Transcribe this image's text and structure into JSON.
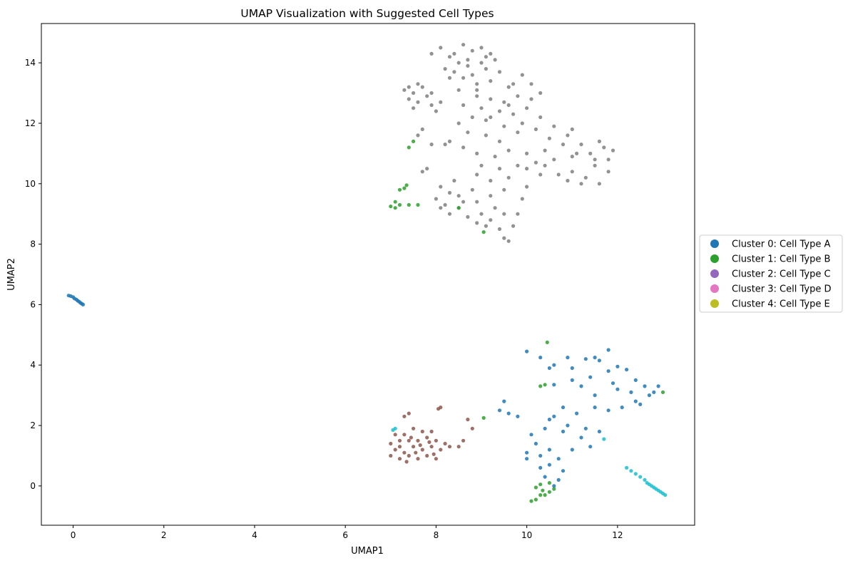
{
  "chart_data": {
    "type": "scatter",
    "title": "UMAP Visualization with Suggested Cell Types",
    "xlabel": "UMAP1",
    "ylabel": "UMAP2",
    "xlim": [
      -0.7,
      13.7
    ],
    "ylim": [
      -1.3,
      15.3
    ],
    "xticks": [
      0,
      2,
      4,
      6,
      8,
      10,
      12
    ],
    "yticks": [
      0,
      2,
      4,
      6,
      8,
      10,
      12,
      14
    ],
    "grid": false,
    "legend_position": "right",
    "legend": [
      {
        "label": "Cluster 0: Cell Type A",
        "color": "#1f77b4"
      },
      {
        "label": "Cluster 1: Cell Type B",
        "color": "#2ca02c"
      },
      {
        "label": "Cluster 2: Cell Type C",
        "color": "#9467bd"
      },
      {
        "label": "Cluster 3: Cell Type D",
        "color": "#e377c2"
      },
      {
        "label": "Cluster 4: Cell Type E",
        "color": "#bcbd22"
      }
    ],
    "series": [
      {
        "color": "#7f7f7f",
        "points": [
          [
            7.9,
            14.3
          ],
          [
            8.1,
            14.5
          ],
          [
            8.3,
            14.2
          ],
          [
            8.6,
            14.6
          ],
          [
            8.8,
            14.4
          ],
          [
            9.0,
            14.5
          ],
          [
            9.2,
            14.3
          ],
          [
            8.5,
            14.0
          ],
          [
            8.7,
            13.9
          ],
          [
            9.0,
            14.0
          ],
          [
            9.3,
            14.1
          ],
          [
            8.4,
            13.7
          ],
          [
            8.8,
            13.6
          ],
          [
            9.1,
            13.8
          ],
          [
            9.4,
            13.7
          ],
          [
            8.2,
            13.8
          ],
          [
            8.6,
            13.5
          ],
          [
            8.9,
            13.3
          ],
          [
            9.2,
            13.4
          ],
          [
            9.6,
            13.2
          ],
          [
            9.9,
            13.6
          ],
          [
            10.1,
            13.3
          ],
          [
            10.3,
            13.0
          ],
          [
            9.8,
            12.9
          ],
          [
            9.5,
            12.7
          ],
          [
            9.2,
            12.8
          ],
          [
            8.9,
            12.9
          ],
          [
            8.6,
            12.6
          ],
          [
            9.0,
            12.5
          ],
          [
            9.4,
            12.4
          ],
          [
            9.7,
            12.3
          ],
          [
            10.0,
            12.5
          ],
          [
            10.3,
            12.2
          ],
          [
            9.9,
            12.0
          ],
          [
            9.5,
            11.9
          ],
          [
            9.1,
            12.1
          ],
          [
            8.8,
            12.2
          ],
          [
            8.5,
            12.0
          ],
          [
            8.7,
            11.7
          ],
          [
            9.1,
            11.6
          ],
          [
            9.4,
            11.4
          ],
          [
            9.8,
            11.7
          ],
          [
            10.2,
            11.8
          ],
          [
            10.5,
            11.5
          ],
          [
            10.8,
            11.3
          ],
          [
            10.4,
            11.1
          ],
          [
            10.0,
            11.0
          ],
          [
            9.6,
            11.1
          ],
          [
            9.3,
            10.9
          ],
          [
            8.9,
            11.0
          ],
          [
            8.6,
            11.2
          ],
          [
            8.3,
            11.4
          ],
          [
            9.0,
            10.6
          ],
          [
            9.4,
            10.5
          ],
          [
            9.8,
            10.6
          ],
          [
            10.2,
            10.7
          ],
          [
            10.6,
            10.8
          ],
          [
            11.0,
            10.9
          ],
          [
            11.4,
            11.0
          ],
          [
            11.7,
            11.2
          ],
          [
            11.9,
            11.1
          ],
          [
            11.6,
            11.4
          ],
          [
            11.2,
            11.3
          ],
          [
            10.9,
            11.6
          ],
          [
            11.1,
            11.0
          ],
          [
            11.5,
            10.6
          ],
          [
            11.8,
            10.4
          ],
          [
            11.3,
            10.2
          ],
          [
            11.0,
            10.4
          ],
          [
            10.7,
            10.3
          ],
          [
            10.3,
            10.3
          ],
          [
            11.2,
            10.0
          ],
          [
            11.6,
            10.0
          ],
          [
            10.9,
            10.1
          ],
          [
            11.5,
            10.8
          ],
          [
            11.8,
            10.8
          ],
          [
            7.3,
            13.1
          ],
          [
            7.5,
            13.0
          ],
          [
            7.7,
            13.2
          ],
          [
            7.4,
            12.8
          ],
          [
            7.6,
            12.7
          ],
          [
            7.8,
            12.9
          ],
          [
            7.5,
            12.5
          ],
          [
            7.9,
            12.6
          ],
          [
            8.1,
            12.7
          ],
          [
            7.7,
            11.8
          ],
          [
            7.6,
            11.6
          ],
          [
            7.9,
            11.3
          ],
          [
            8.2,
            11.3
          ],
          [
            7.8,
            10.5
          ],
          [
            7.7,
            10.4
          ],
          [
            8.1,
            9.9
          ],
          [
            8.3,
            9.7
          ],
          [
            8.0,
            9.5
          ],
          [
            8.5,
            9.6
          ],
          [
            8.8,
            9.8
          ],
          [
            8.6,
            9.4
          ],
          [
            8.2,
            9.3
          ],
          [
            8.5,
            9.2
          ],
          [
            8.9,
            9.4
          ],
          [
            9.2,
            9.6
          ],
          [
            9.5,
            9.8
          ],
          [
            9.3,
            9.2
          ],
          [
            9.0,
            9.0
          ],
          [
            8.7,
            8.9
          ],
          [
            9.2,
            8.8
          ],
          [
            9.5,
            9.0
          ],
          [
            9.7,
            8.6
          ],
          [
            9.4,
            8.5
          ],
          [
            9.1,
            8.6
          ],
          [
            8.9,
            8.7
          ],
          [
            9.5,
            8.2
          ],
          [
            9.6,
            8.1
          ],
          [
            9.8,
            9.0
          ],
          [
            9.9,
            9.5
          ],
          [
            10.0,
            9.9
          ],
          [
            9.6,
            10.2
          ],
          [
            9.2,
            10.1
          ],
          [
            8.9,
            10.3
          ],
          [
            8.4,
            10.1
          ],
          [
            8.3,
            9.0
          ],
          [
            8.1,
            9.2
          ],
          [
            10.0,
            10.5
          ],
          [
            10.4,
            10.6
          ],
          [
            11.0,
            11.8
          ],
          [
            10.6,
            11.9
          ],
          [
            10.1,
            12.8
          ],
          [
            9.7,
            13.3
          ],
          [
            8.4,
            14.3
          ],
          [
            8.7,
            14.1
          ],
          [
            9.1,
            14.2
          ],
          [
            8.9,
            13.1
          ],
          [
            8.5,
            13.1
          ],
          [
            8.3,
            13.5
          ],
          [
            7.6,
            13.3
          ],
          [
            7.4,
            13.2
          ],
          [
            7.9,
            13.0
          ],
          [
            8.0,
            12.4
          ],
          [
            9.2,
            12.2
          ],
          [
            9.6,
            12.6
          ]
        ]
      },
      {
        "color": "#1f77b4",
        "points": [
          [
            -0.1,
            6.3
          ],
          [
            -0.05,
            6.28
          ],
          [
            0.0,
            6.25
          ],
          [
            0.03,
            6.2
          ],
          [
            0.07,
            6.17
          ],
          [
            0.1,
            6.13
          ],
          [
            0.13,
            6.1
          ],
          [
            0.16,
            6.06
          ],
          [
            0.19,
            6.03
          ],
          [
            0.22,
            6.0
          ],
          [
            10.0,
            4.45
          ],
          [
            10.3,
            4.25
          ],
          [
            10.6,
            4.0
          ],
          [
            10.9,
            4.25
          ],
          [
            11.3,
            4.2
          ],
          [
            11.5,
            4.25
          ],
          [
            11.8,
            4.5
          ],
          [
            11.6,
            4.15
          ],
          [
            12.0,
            3.95
          ],
          [
            12.2,
            3.85
          ],
          [
            11.8,
            3.8
          ],
          [
            11.4,
            3.6
          ],
          [
            11.0,
            3.5
          ],
          [
            10.6,
            3.35
          ],
          [
            11.2,
            3.3
          ],
          [
            11.5,
            3.0
          ],
          [
            12.0,
            3.2
          ],
          [
            12.3,
            3.1
          ],
          [
            12.6,
            3.3
          ],
          [
            12.9,
            3.3
          ],
          [
            12.7,
            3.0
          ],
          [
            12.4,
            2.8
          ],
          [
            12.1,
            2.6
          ],
          [
            11.8,
            2.5
          ],
          [
            11.5,
            2.6
          ],
          [
            11.1,
            2.4
          ],
          [
            10.8,
            2.6
          ],
          [
            10.6,
            2.3
          ],
          [
            10.9,
            2.0
          ],
          [
            11.3,
            1.9
          ],
          [
            11.6,
            1.8
          ],
          [
            11.2,
            1.6
          ],
          [
            10.8,
            1.8
          ],
          [
            10.4,
            1.9
          ],
          [
            10.1,
            1.7
          ],
          [
            9.4,
            2.5
          ],
          [
            9.6,
            2.4
          ],
          [
            9.8,
            2.3
          ],
          [
            9.5,
            2.8
          ],
          [
            10.5,
            2.2
          ],
          [
            10.2,
            1.4
          ],
          [
            10.0,
            1.1
          ],
          [
            10.3,
            1.0
          ],
          [
            10.5,
            1.2
          ],
          [
            10.7,
            0.9
          ],
          [
            10.5,
            0.7
          ],
          [
            10.8,
            0.5
          ],
          [
            10.7,
            0.2
          ],
          [
            10.6,
            0.0
          ],
          [
            10.4,
            0.3
          ],
          [
            10.0,
            0.9
          ],
          [
            10.3,
            0.6
          ],
          [
            11.0,
            1.2
          ],
          [
            11.4,
            1.3
          ],
          [
            12.5,
            2.7
          ],
          [
            12.8,
            3.1
          ],
          [
            12.4,
            3.5
          ],
          [
            11.9,
            3.4
          ],
          [
            11.0,
            3.9
          ],
          [
            10.5,
            3.9
          ]
        ]
      },
      {
        "color": "#2ca02c",
        "points": [
          [
            7.5,
            11.4
          ],
          [
            7.4,
            11.2
          ],
          [
            7.35,
            9.95
          ],
          [
            7.3,
            9.85
          ],
          [
            7.2,
            9.8
          ],
          [
            7.1,
            9.4
          ],
          [
            7.2,
            9.3
          ],
          [
            7.0,
            9.25
          ],
          [
            7.1,
            9.2
          ],
          [
            7.4,
            9.3
          ],
          [
            7.6,
            9.3
          ],
          [
            8.5,
            9.2
          ],
          [
            9.05,
            8.4
          ],
          [
            10.45,
            4.75
          ],
          [
            10.4,
            3.35
          ],
          [
            10.3,
            3.3
          ],
          [
            13.0,
            3.1
          ],
          [
            9.05,
            2.25
          ],
          [
            10.6,
            -0.1
          ],
          [
            10.5,
            -0.2
          ],
          [
            10.4,
            -0.3
          ],
          [
            10.3,
            -0.3
          ],
          [
            10.2,
            -0.45
          ],
          [
            10.1,
            -0.5
          ],
          [
            10.3,
            0.05
          ],
          [
            10.2,
            -0.05
          ],
          [
            10.5,
            0.1
          ],
          [
            10.35,
            -0.15
          ]
        ]
      },
      {
        "color": "#8c564b",
        "points": [
          [
            7.0,
            1.4
          ],
          [
            7.1,
            1.2
          ],
          [
            7.0,
            1.0
          ],
          [
            7.2,
            0.9
          ],
          [
            7.3,
            1.1
          ],
          [
            7.2,
            1.5
          ],
          [
            7.3,
            1.7
          ],
          [
            7.4,
            1.5
          ],
          [
            7.5,
            1.3
          ],
          [
            7.4,
            1.0
          ],
          [
            7.6,
            0.9
          ],
          [
            7.7,
            1.2
          ],
          [
            7.6,
            1.5
          ],
          [
            7.7,
            1.8
          ],
          [
            7.8,
            1.6
          ],
          [
            7.9,
            1.3
          ],
          [
            7.8,
            1.0
          ],
          [
            8.0,
            0.9
          ],
          [
            8.1,
            1.2
          ],
          [
            8.0,
            1.5
          ],
          [
            7.9,
            1.8
          ],
          [
            7.5,
            1.9
          ],
          [
            7.3,
            2.3
          ],
          [
            7.4,
            2.4
          ],
          [
            8.05,
            2.55
          ],
          [
            8.1,
            2.6
          ],
          [
            8.3,
            1.3
          ],
          [
            8.5,
            1.3
          ],
          [
            8.6,
            1.5
          ],
          [
            8.7,
            2.2
          ],
          [
            8.8,
            1.9
          ],
          [
            7.1,
            1.7
          ],
          [
            7.2,
            1.3
          ],
          [
            7.35,
            0.8
          ],
          [
            7.55,
            1.1
          ],
          [
            7.65,
            1.35
          ],
          [
            7.85,
            1.45
          ],
          [
            7.45,
            1.6
          ],
          [
            7.95,
            1.05
          ],
          [
            8.2,
            1.4
          ]
        ]
      },
      {
        "color": "#17becf",
        "points": [
          [
            12.2,
            0.6
          ],
          [
            12.3,
            0.5
          ],
          [
            12.4,
            0.4
          ],
          [
            12.5,
            0.3
          ],
          [
            12.6,
            0.2
          ],
          [
            12.65,
            0.1
          ],
          [
            12.7,
            0.05
          ],
          [
            12.75,
            0.0
          ],
          [
            12.8,
            -0.05
          ],
          [
            12.85,
            -0.1
          ],
          [
            12.9,
            -0.15
          ],
          [
            12.95,
            -0.2
          ],
          [
            13.0,
            -0.25
          ],
          [
            13.05,
            -0.3
          ],
          [
            7.1,
            1.9
          ],
          [
            7.05,
            1.85
          ],
          [
            11.7,
            1.55
          ]
        ]
      }
    ]
  }
}
